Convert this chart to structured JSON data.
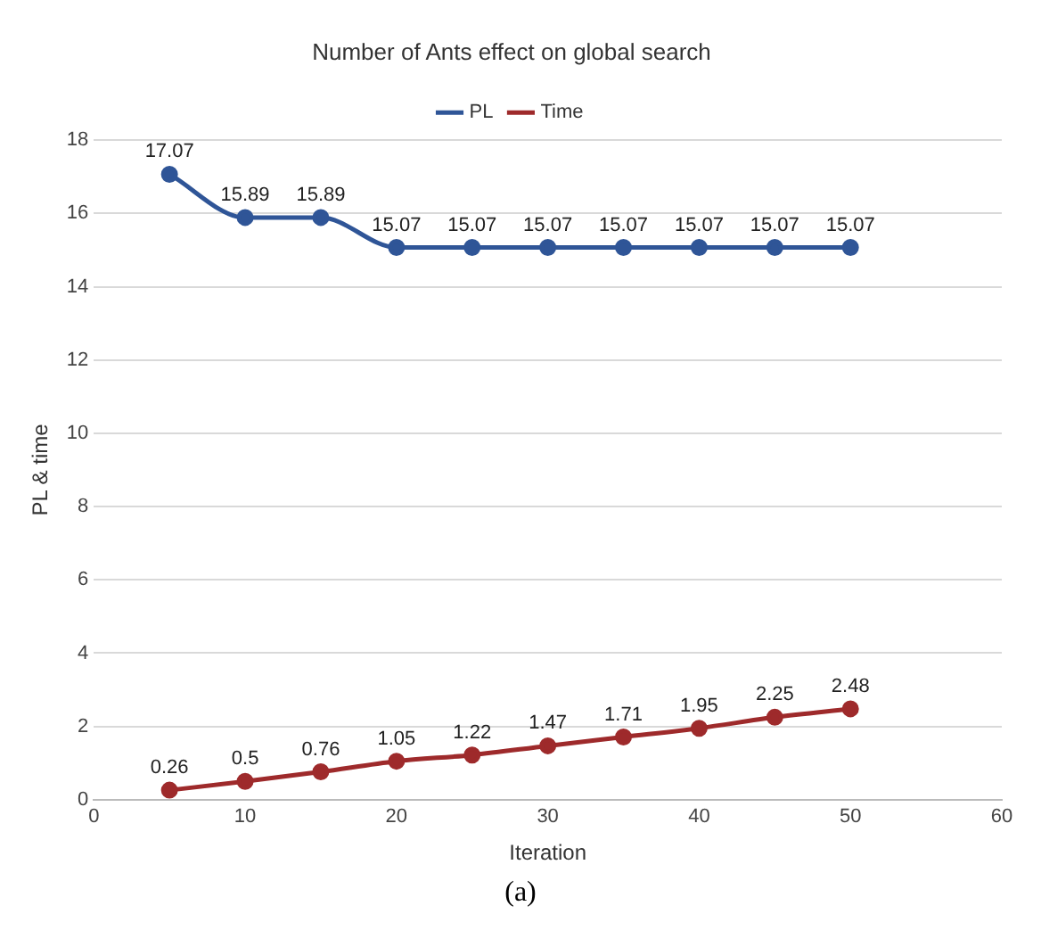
{
  "chart_data": {
    "type": "line",
    "title": "Number of Ants effect on global search",
    "xlabel": "Iteration",
    "ylabel": "PL & time",
    "x": [
      5,
      10,
      15,
      20,
      25,
      30,
      35,
      40,
      45,
      50
    ],
    "series": [
      {
        "name": "PL",
        "color": "#2f5597",
        "values": [
          17.07,
          15.89,
          15.89,
          15.07,
          15.07,
          15.07,
          15.07,
          15.07,
          15.07,
          15.07
        ]
      },
      {
        "name": "Time",
        "color": "#9e2a2b",
        "values": [
          0.26,
          0.5,
          0.76,
          1.05,
          1.22,
          1.47,
          1.71,
          1.95,
          2.25,
          2.48
        ]
      }
    ],
    "xlim": [
      0,
      60
    ],
    "xticks": [
      0,
      10,
      20,
      30,
      40,
      50,
      60
    ],
    "ylim": [
      0,
      18
    ],
    "yticks": [
      0,
      2,
      4,
      6,
      8,
      10,
      12,
      14,
      16,
      18
    ],
    "grid": "y",
    "legend": "top",
    "marker": "circle",
    "line_style": "solid",
    "data_labels": true,
    "annotations": [
      "(a)"
    ]
  }
}
